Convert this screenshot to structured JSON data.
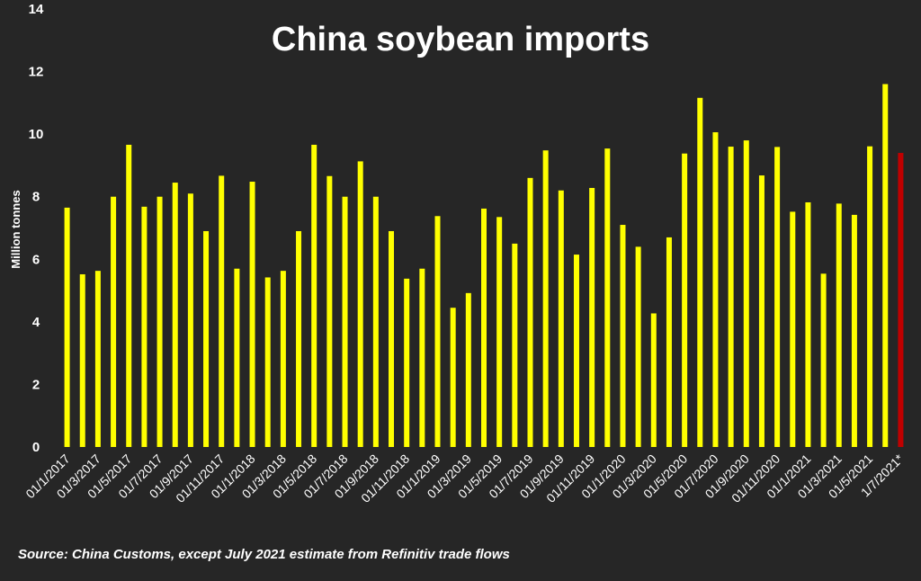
{
  "chart_data": {
    "type": "bar",
    "title": "China soybean imports",
    "ylabel": "Million tonnes",
    "xlabel": "",
    "ylim": [
      0,
      14
    ],
    "yticks": [
      "0",
      "2",
      "4",
      "6",
      "8",
      "10",
      "12",
      "14"
    ],
    "grid": false,
    "legend": "none",
    "source": "Source: China Customs, except July 2021 estimate from Refinitiv trade flows",
    "colors": {
      "background": "#262626",
      "bar": "#ffff00",
      "estimate_bar": "#c00000",
      "text": "#ffffff"
    },
    "categories": [
      "01/1/2017",
      "01/2/2017",
      "01/3/2017",
      "01/4/2017",
      "01/5/2017",
      "01/6/2017",
      "01/7/2017",
      "01/8/2017",
      "01/9/2017",
      "01/10/2017",
      "01/11/2017",
      "01/12/2017",
      "01/1/2018",
      "01/2/2018",
      "01/3/2018",
      "01/4/2018",
      "01/5/2018",
      "01/6/2018",
      "01/7/2018",
      "01/8/2018",
      "01/9/2018",
      "01/10/2018",
      "01/11/2018",
      "01/12/2018",
      "01/1/2019",
      "01/2/2019",
      "01/3/2019",
      "01/4/2019",
      "01/5/2019",
      "01/6/2019",
      "01/7/2019",
      "01/8/2019",
      "01/9/2019",
      "01/10/2019",
      "01/11/2019",
      "01/12/2019",
      "01/1/2020",
      "01/2/2020",
      "01/3/2020",
      "01/4/2020",
      "01/5/2020",
      "01/6/2020",
      "01/7/2020",
      "01/8/2020",
      "01/9/2020",
      "01/10/2020",
      "01/11/2020",
      "01/12/2020",
      "01/1/2021",
      "01/2/2021",
      "01/3/2021",
      "01/4/2021",
      "01/5/2021",
      "01/6/2021",
      "1/7/2021*"
    ],
    "labeled_categories": [
      "01/1/2017",
      "01/3/2017",
      "01/5/2017",
      "01/7/2017",
      "01/9/2017",
      "01/11/2017",
      "01/1/2018",
      "01/3/2018",
      "01/5/2018",
      "01/7/2018",
      "01/9/2018",
      "01/11/2018",
      "01/1/2019",
      "01/3/2019",
      "01/5/2019",
      "01/7/2019",
      "01/9/2019",
      "01/11/2019",
      "01/1/2020",
      "01/3/2020",
      "01/5/2020",
      "01/7/2020",
      "01/9/2020",
      "01/11/2020",
      "01/1/2021",
      "01/3/2021",
      "01/5/2021",
      "1/7/2021*"
    ],
    "values": [
      7.65,
      5.52,
      5.63,
      8.0,
      9.66,
      7.68,
      8.0,
      8.45,
      8.1,
      6.9,
      8.67,
      5.7,
      8.48,
      5.42,
      5.63,
      6.9,
      9.66,
      8.66,
      8.0,
      9.13,
      8.0,
      6.9,
      5.38,
      5.7,
      7.38,
      4.45,
      4.92,
      7.62,
      7.35,
      6.5,
      8.6,
      9.48,
      8.2,
      6.15,
      8.28,
      9.54,
      7.1,
      6.4,
      4.27,
      6.7,
      9.38,
      11.16,
      10.06,
      9.6,
      9.8,
      8.68,
      9.59,
      7.52,
      7.82,
      5.54,
      7.78,
      7.42,
      9.61,
      11.6,
      9.4
    ],
    "estimate_index": 54
  }
}
